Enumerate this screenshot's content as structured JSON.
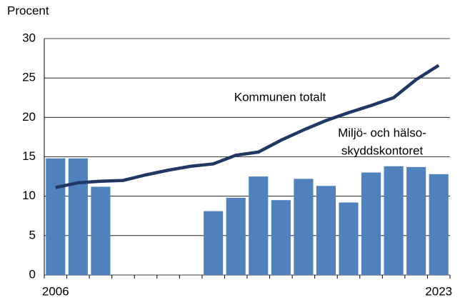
{
  "chart_data": {
    "type": "bar_line",
    "y_label": "Procent",
    "categories": [
      "2006",
      null,
      null,
      null,
      null,
      null,
      null,
      null,
      null,
      null,
      null,
      null,
      null,
      null,
      null,
      null,
      null,
      "2023"
    ],
    "series": [
      {
        "type": "bar",
        "color": "#4f81bd",
        "values": [
          14.8,
          14.8,
          11.2,
          null,
          null,
          null,
          null,
          8.1,
          9.8,
          12.5,
          9.5,
          12.2,
          11.3,
          9.2,
          13.0,
          13.8,
          13.7,
          12.8
        ]
      },
      {
        "type": "line",
        "color": "#1f3864",
        "values": [
          11.1,
          11.7,
          11.9,
          12.0,
          12.7,
          13.3,
          13.8,
          14.1,
          15.2,
          15.6,
          17.1,
          18.4,
          19.6,
          20.6,
          21.5,
          22.5,
          24.8,
          26.6
        ]
      }
    ],
    "annotations": [
      "Kommunen totalt",
      "Miljö- och hälso-",
      "skyddskontoret"
    ],
    "ylim": [
      0,
      30
    ],
    "yticks": [
      0,
      5,
      10,
      15,
      20,
      25,
      30
    ],
    "grid": true
  }
}
